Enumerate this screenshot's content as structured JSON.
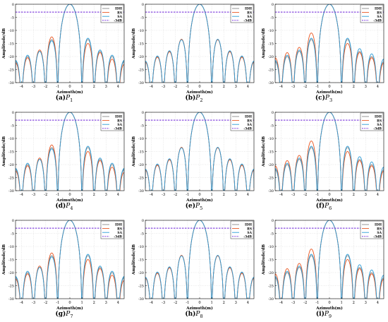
{
  "chart_data": [
    {
      "type": "line",
      "caption_label": "(a)",
      "caption_symbol": "P",
      "caption_sub": "1",
      "xlabel": "Azimuth(m)",
      "ylabel": "Amplitude/dB",
      "xlim": [
        -4.5,
        4.5
      ],
      "ylim": [
        -30,
        0
      ],
      "xticks": [
        "-4",
        "-3",
        "-2",
        "-1",
        "0",
        "1",
        "2",
        "3",
        "4"
      ],
      "yticks": [
        "0",
        "-5",
        "-10",
        "-15",
        "-20",
        "-25",
        "-30"
      ],
      "legend": [
        "IDH",
        "RS",
        "SA",
        "-3dB"
      ],
      "legend_position": "top-right",
      "grid": true,
      "reference_line_db": -3,
      "sidelobe_peaks_db": {
        "IDH": [
          -24,
          -22,
          -20,
          -18,
          -13.5,
          -13.5,
          -18,
          -20,
          -22,
          -24
        ],
        "RS": [
          -24.5,
          -22.5,
          -20.5,
          -17.5,
          -12.5,
          -15,
          -18.5,
          -21,
          -23,
          -25
        ],
        "SA": [
          -23.5,
          -21.5,
          -19.5,
          -18,
          -14,
          -13,
          -17.5,
          -19.5,
          -21.5,
          -23.5
        ]
      }
    },
    {
      "type": "line",
      "caption_label": "(b)",
      "caption_symbol": "P",
      "caption_sub": "2",
      "xlabel": "Azimuth(m)",
      "ylabel": "Amplitude/dB",
      "xlim": [
        -4.5,
        4.5
      ],
      "ylim": [
        -30,
        0
      ],
      "xticks": [
        "-4",
        "-3",
        "-2",
        "-1",
        "0",
        "1",
        "2",
        "3",
        "4"
      ],
      "yticks": [
        "0",
        "-5",
        "-10",
        "-15",
        "-20",
        "-25",
        "-30"
      ],
      "legend": [
        "IDH",
        "RS",
        "SA",
        "-3dB"
      ],
      "legend_position": "top-right",
      "grid": true,
      "reference_line_db": -3,
      "sidelobe_peaks_db": {
        "IDH": [
          -24,
          -22,
          -20,
          -18,
          -13.5,
          -13.5,
          -18,
          -20,
          -22,
          -24
        ],
        "RS": [
          -24.2,
          -22.2,
          -20.3,
          -18.2,
          -13.4,
          -13.6,
          -18.2,
          -20.3,
          -22.2,
          -24.2
        ],
        "SA": [
          -23.8,
          -21.8,
          -19.8,
          -17.8,
          -13.6,
          -13.4,
          -17.8,
          -19.8,
          -21.8,
          -23.8
        ]
      }
    },
    {
      "type": "line",
      "caption_label": "(c)",
      "caption_symbol": "P",
      "caption_sub": "3",
      "xlabel": "Azimuth(m)",
      "ylabel": "Amplitude/dB",
      "xlim": [
        -4.5,
        4.5
      ],
      "ylim": [
        -30,
        0
      ],
      "xticks": [
        "-4",
        "-3",
        "-2",
        "-1",
        "0",
        "1",
        "2",
        "3",
        "4"
      ],
      "yticks": [
        "0",
        "-5",
        "-10",
        "-15",
        "-20",
        "-25",
        "-30"
      ],
      "legend": [
        "IDH",
        "RS",
        "SA",
        "-3dB"
      ],
      "legend_position": "top-right",
      "grid": true,
      "reference_line_db": -3,
      "sidelobe_peaks_db": {
        "IDH": [
          -24,
          -22,
          -20,
          -18,
          -13.5,
          -13.5,
          -18,
          -20,
          -22,
          -24
        ],
        "RS": [
          -23,
          -20.5,
          -18.5,
          -16.5,
          -11,
          -15,
          -18.5,
          -20.5,
          -22.5,
          -24
        ],
        "SA": [
          -23.5,
          -21.5,
          -19.5,
          -17.5,
          -13,
          -13,
          -17,
          -19,
          -21,
          -23
        ]
      }
    },
    {
      "type": "line",
      "caption_label": "(d)",
      "caption_symbol": "P",
      "caption_sub": "4",
      "xlabel": "Azimuth(m)",
      "ylabel": "Amplitude/dB",
      "xlim": [
        -4.5,
        4.5
      ],
      "ylim": [
        -30,
        0
      ],
      "xticks": [
        "-4",
        "-3",
        "-2",
        "-1",
        "0",
        "1",
        "2",
        "3",
        "4"
      ],
      "yticks": [
        "0",
        "-5",
        "-10",
        "-15",
        "-20",
        "-25",
        "-30"
      ],
      "legend": [
        "IDH",
        "RS",
        "SA",
        "-3dB"
      ],
      "legend_position": "top-right",
      "grid": true,
      "reference_line_db": -3,
      "sidelobe_peaks_db": {
        "IDH": [
          -24,
          -22,
          -20,
          -18,
          -13.5,
          -13.5,
          -18,
          -20,
          -22,
          -24
        ],
        "RS": [
          -24.5,
          -22.5,
          -20.5,
          -17.5,
          -12.5,
          -15,
          -18.5,
          -21,
          -23,
          -25
        ],
        "SA": [
          -23.5,
          -21.5,
          -19.5,
          -18,
          -14,
          -13,
          -17.5,
          -19.5,
          -21.5,
          -23.5
        ]
      }
    },
    {
      "type": "line",
      "caption_label": "(e)",
      "caption_symbol": "P",
      "caption_sub": "5",
      "xlabel": "Azimuth(m)",
      "ylabel": "Amplitude/dB",
      "xlim": [
        -4.5,
        4.5
      ],
      "ylim": [
        -30,
        0
      ],
      "xticks": [
        "-4",
        "-3",
        "-2",
        "-1",
        "0",
        "1",
        "2",
        "3",
        "4"
      ],
      "yticks": [
        "0",
        "-5",
        "-10",
        "-15",
        "-20",
        "-25",
        "-30"
      ],
      "legend": [
        "IDH",
        "RS",
        "SA",
        "-3dB"
      ],
      "legend_position": "top-right",
      "grid": true,
      "reference_line_db": -3,
      "sidelobe_peaks_db": {
        "IDH": [
          -24,
          -22,
          -20,
          -18,
          -13.5,
          -13.5,
          -18,
          -20,
          -22,
          -24
        ],
        "RS": [
          -24.2,
          -22.2,
          -20.3,
          -18.2,
          -13.4,
          -13.6,
          -18.2,
          -20.3,
          -22.2,
          -24.2
        ],
        "SA": [
          -23.8,
          -21.8,
          -19.8,
          -17.8,
          -13.6,
          -13.4,
          -17.8,
          -19.8,
          -21.8,
          -23.8
        ]
      }
    },
    {
      "type": "line",
      "caption_label": "(f)",
      "caption_symbol": "P",
      "caption_sub": "6",
      "xlabel": "Azimuth(m)",
      "ylabel": "Amplitude/dB",
      "xlim": [
        -4.5,
        4.5
      ],
      "ylim": [
        -30,
        0
      ],
      "xticks": [
        "-4",
        "-3",
        "-2",
        "-1",
        "0",
        "1",
        "2",
        "3",
        "4"
      ],
      "yticks": [
        "0",
        "-5",
        "-10",
        "-15",
        "-20",
        "-25",
        "-30"
      ],
      "legend": [
        "IDH",
        "RS",
        "SA",
        "-3dB"
      ],
      "legend_position": "top-right",
      "grid": true,
      "reference_line_db": -3,
      "sidelobe_peaks_db": {
        "IDH": [
          -24,
          -22,
          -20,
          -18,
          -13.5,
          -13.5,
          -18,
          -20,
          -22,
          -24
        ],
        "RS": [
          -23,
          -20.5,
          -18.5,
          -16.5,
          -11,
          -15,
          -18.5,
          -20.5,
          -22.5,
          -24
        ],
        "SA": [
          -23.5,
          -21.5,
          -19.5,
          -17.5,
          -13,
          -13,
          -17,
          -19,
          -21,
          -23
        ]
      }
    },
    {
      "type": "line",
      "caption_label": "(g)",
      "caption_symbol": "P",
      "caption_sub": "7",
      "xlabel": "Azimuth(m)",
      "ylabel": "Amplitude/dB",
      "xlim": [
        -4.5,
        4.5
      ],
      "ylim": [
        -30,
        0
      ],
      "xticks": [
        "-4",
        "-3",
        "-2",
        "-1",
        "0",
        "1",
        "2",
        "3",
        "4"
      ],
      "yticks": [
        "0",
        "-5",
        "-10",
        "-15",
        "-20",
        "-25",
        "-30"
      ],
      "legend": [
        "IDH",
        "RS",
        "SA",
        "-3dB"
      ],
      "legend_position": "top-right",
      "grid": true,
      "reference_line_db": -3,
      "sidelobe_peaks_db": {
        "IDH": [
          -24,
          -22,
          -20,
          -18,
          -13.5,
          -13.5,
          -18,
          -20,
          -22,
          -24
        ],
        "RS": [
          -24.5,
          -22.5,
          -20.5,
          -17.5,
          -12.5,
          -15,
          -18.5,
          -21,
          -23,
          -25
        ],
        "SA": [
          -23.5,
          -21.5,
          -19.5,
          -18,
          -14,
          -13,
          -17.5,
          -19.5,
          -21.5,
          -23.5
        ]
      }
    },
    {
      "type": "line",
      "caption_label": "(h)",
      "caption_symbol": "P",
      "caption_sub": "8",
      "xlabel": "Azimuth(m)",
      "ylabel": "Amplitude/dB",
      "xlim": [
        -4.5,
        4.5
      ],
      "ylim": [
        -30,
        0
      ],
      "xticks": [
        "-4",
        "-3",
        "-2",
        "-1",
        "0",
        "1",
        "2",
        "3",
        "4"
      ],
      "yticks": [
        "0",
        "-5",
        "-10",
        "-15",
        "-20",
        "-25",
        "-30"
      ],
      "legend": [
        "IDH",
        "RS",
        "SA",
        "-3dB"
      ],
      "legend_position": "top-right",
      "grid": true,
      "reference_line_db": -3,
      "sidelobe_peaks_db": {
        "IDH": [
          -24,
          -22,
          -20,
          -18,
          -13.5,
          -13.5,
          -18,
          -20,
          -22,
          -24
        ],
        "RS": [
          -24.2,
          -22.2,
          -20.3,
          -18.2,
          -13.4,
          -13.6,
          -18.2,
          -20.3,
          -22.2,
          -24.2
        ],
        "SA": [
          -23.8,
          -21.8,
          -19.8,
          -17.8,
          -13.6,
          -13.4,
          -17.8,
          -19.8,
          -21.8,
          -23.8
        ]
      }
    },
    {
      "type": "line",
      "caption_label": "(i)",
      "caption_symbol": "P",
      "caption_sub": "9",
      "xlabel": "Azimuth(m)",
      "ylabel": "Amplitude/dB",
      "xlim": [
        -4.5,
        4.5
      ],
      "ylim": [
        -30,
        0
      ],
      "xticks": [
        "-4",
        "-3",
        "-2",
        "-1",
        "0",
        "1",
        "2",
        "3",
        "4"
      ],
      "yticks": [
        "0",
        "-5",
        "-10",
        "-15",
        "-20",
        "-25",
        "-30"
      ],
      "legend": [
        "IDH",
        "RS",
        "SA",
        "-3dB"
      ],
      "legend_position": "top-right",
      "grid": true,
      "reference_line_db": -3,
      "sidelobe_peaks_db": {
        "IDH": [
          -24,
          -22,
          -20,
          -18,
          -13.5,
          -13.5,
          -18,
          -20,
          -22,
          -24
        ],
        "RS": [
          -23,
          -20.5,
          -18.5,
          -16.5,
          -11,
          -15,
          -18.5,
          -20.5,
          -22.5,
          -24
        ],
        "SA": [
          -23.5,
          -21.5,
          -19.5,
          -17.5,
          -13,
          -13,
          -17,
          -19,
          -21,
          -23
        ]
      }
    }
  ],
  "colors": {
    "IDH": "#8a8a8a",
    "RS": "#e8541e",
    "SA": "#2a9ad6",
    "-3dB": "#6a1fd8"
  }
}
